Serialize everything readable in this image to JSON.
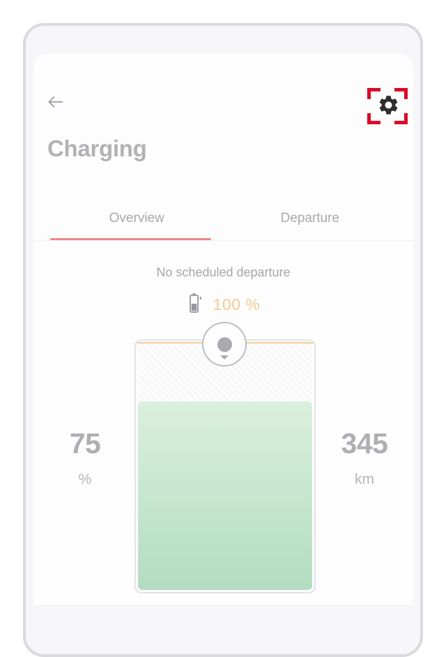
{
  "page": {
    "title": "Charging"
  },
  "header": {
    "back_icon": "left-arrow",
    "settings_icon": "gear"
  },
  "annotation": {
    "type": "click-target-brackets",
    "color": "#dc0a2b",
    "around": "settings-button"
  },
  "tabs": {
    "items": [
      {
        "label": "Overview",
        "active": true
      },
      {
        "label": "Departure",
        "active": false
      }
    ]
  },
  "overview": {
    "departure_status": "No scheduled departure",
    "charge_limit": {
      "icon": "battery-charging",
      "label": "100 %"
    },
    "battery_gauge": {
      "fill_percent": 75,
      "soc_value": "75",
      "soc_unit": "%",
      "range_value": "345",
      "range_unit": "km"
    }
  },
  "colors": {
    "active_tab_underline": "#f08787",
    "charge_limit_orange": "#f5ca90",
    "fill_green_top": "#daf0de",
    "fill_green_bottom": "#b3dcbf",
    "annotation_red": "#dc0a2b",
    "text_gray": "#a8a8ae"
  }
}
